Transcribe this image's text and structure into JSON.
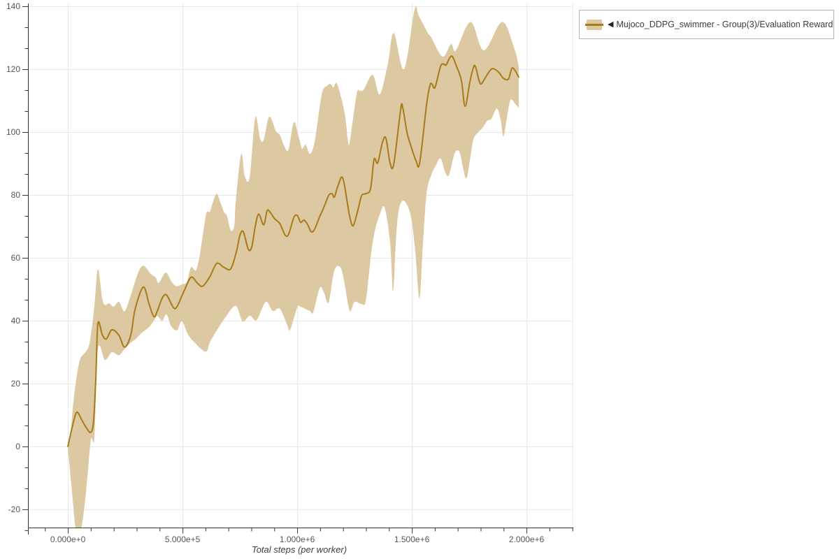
{
  "legend": {
    "arrow": "◀",
    "label": "Mujoco_DDPG_swimmer - Group(3)/Evaluation Reward"
  },
  "colors": {
    "line": "#a87a18",
    "band": "#dcc9a1",
    "grid": "#e7e7e7",
    "axis": "#333333",
    "tick_text": "#555555",
    "axis_title_text": "#3f3f3f",
    "legend_border": "#b5b5b5"
  },
  "chart_data": {
    "type": "line",
    "title": "",
    "xlabel": "Total steps (per worker)",
    "ylabel": "",
    "grid": true,
    "legend_position": "top-right",
    "xlim": [
      -174000,
      2204000
    ],
    "ylim": [
      -25.8,
      140.9
    ],
    "x_ticks": [
      {
        "value": 0,
        "label": "0.000e+0"
      },
      {
        "value": 500000,
        "label": "5.000e+5"
      },
      {
        "value": 1000000,
        "label": "1.000e+6"
      },
      {
        "value": 1500000,
        "label": "1.500e+6"
      },
      {
        "value": 2000000,
        "label": "2.000e+6"
      }
    ],
    "x_minor_step": 100000,
    "y_ticks": [
      {
        "value": -20,
        "label": "-20"
      },
      {
        "value": 0,
        "label": "0"
      },
      {
        "value": 20,
        "label": "20"
      },
      {
        "value": 40,
        "label": "40"
      },
      {
        "value": 60,
        "label": "60"
      },
      {
        "value": 80,
        "label": "80"
      },
      {
        "value": 100,
        "label": "100"
      },
      {
        "value": 120,
        "label": "120"
      },
      {
        "value": 140,
        "label": "140"
      }
    ],
    "series": [
      {
        "name": "Mujoco_DDPG_swimmer - Group(3)/Evaluation Reward",
        "mean": [
          [
            0,
            0
          ],
          [
            25000,
            8
          ],
          [
            40000,
            10.9
          ],
          [
            60000,
            8.5
          ],
          [
            80000,
            6
          ],
          [
            100000,
            4.5
          ],
          [
            112000,
            8
          ],
          [
            122000,
            22
          ],
          [
            131000,
            39.1
          ],
          [
            150000,
            35.5
          ],
          [
            168000,
            34.2
          ],
          [
            192000,
            37.1
          ],
          [
            223000,
            35.3
          ],
          [
            247000,
            31.6
          ],
          [
            274000,
            35.3
          ],
          [
            293000,
            43.6
          ],
          [
            329000,
            50.7
          ],
          [
            354000,
            45.3
          ],
          [
            375000,
            41.3
          ],
          [
            390000,
            43.1
          ],
          [
            411000,
            47.1
          ],
          [
            430000,
            48.2
          ],
          [
            460000,
            44.2
          ],
          [
            476000,
            44.5
          ],
          [
            506000,
            49.3
          ],
          [
            537000,
            53.8
          ],
          [
            564000,
            52
          ],
          [
            588000,
            51
          ],
          [
            619000,
            54
          ],
          [
            649000,
            58.2
          ],
          [
            680000,
            57
          ],
          [
            710000,
            56.5
          ],
          [
            735000,
            62
          ],
          [
            750000,
            67.1
          ],
          [
            765000,
            68.3
          ],
          [
            787000,
            62.7
          ],
          [
            802000,
            63.5
          ],
          [
            817000,
            70
          ],
          [
            832000,
            73.9
          ],
          [
            854000,
            70.5
          ],
          [
            869000,
            75
          ],
          [
            884000,
            74.3
          ],
          [
            902000,
            72.4
          ],
          [
            924000,
            70.9
          ],
          [
            948000,
            67.2
          ],
          [
            963000,
            67.6
          ],
          [
            985000,
            72.8
          ],
          [
            1000000,
            73.5
          ],
          [
            1015000,
            71.3
          ],
          [
            1030000,
            72
          ],
          [
            1046000,
            70.5
          ],
          [
            1061000,
            68.3
          ],
          [
            1076000,
            69.1
          ],
          [
            1098000,
            73.1
          ],
          [
            1116000,
            76
          ],
          [
            1137000,
            79.8
          ],
          [
            1152000,
            80.4
          ],
          [
            1162000,
            79.3
          ],
          [
            1177000,
            82.7
          ],
          [
            1198000,
            85.5
          ],
          [
            1220000,
            76.9
          ],
          [
            1229000,
            73.1
          ],
          [
            1244000,
            70.2
          ],
          [
            1265000,
            75.3
          ],
          [
            1281000,
            79.8
          ],
          [
            1299000,
            80.4
          ],
          [
            1320000,
            82
          ],
          [
            1335000,
            91.3
          ],
          [
            1351000,
            90.2
          ],
          [
            1372000,
            96.8
          ],
          [
            1387000,
            98
          ],
          [
            1405000,
            90.2
          ],
          [
            1421000,
            89.8
          ],
          [
            1451000,
            107.1
          ],
          [
            1460000,
            107.8
          ],
          [
            1479000,
            99.8
          ],
          [
            1494000,
            96
          ],
          [
            1518000,
            90.9
          ],
          [
            1534000,
            90.2
          ],
          [
            1564000,
            108.7
          ],
          [
            1579000,
            114.9
          ],
          [
            1588000,
            115.3
          ],
          [
            1601000,
            114.2
          ],
          [
            1625000,
            120.9
          ],
          [
            1640000,
            121.6
          ],
          [
            1649000,
            121.3
          ],
          [
            1665000,
            123.6
          ],
          [
            1677000,
            124
          ],
          [
            1695000,
            120.9
          ],
          [
            1716000,
            116.4
          ],
          [
            1732000,
            108.2
          ],
          [
            1753000,
            116
          ],
          [
            1768000,
            120.4
          ],
          [
            1777000,
            120.9
          ],
          [
            1793000,
            116.4
          ],
          [
            1802000,
            115.3
          ],
          [
            1817000,
            116.9
          ],
          [
            1838000,
            119.3
          ],
          [
            1853000,
            120.2
          ],
          [
            1878000,
            119.1
          ],
          [
            1899000,
            117.1
          ],
          [
            1921000,
            116.9
          ],
          [
            1939000,
            120.4
          ],
          [
            1966000,
            117.5
          ]
        ],
        "band_hi": [
          [
            0,
            0.5
          ],
          [
            9000,
            2
          ],
          [
            24000,
            14
          ],
          [
            40000,
            23
          ],
          [
            55000,
            28
          ],
          [
            76000,
            30
          ],
          [
            95000,
            33
          ],
          [
            116000,
            45
          ],
          [
            131000,
            56.4
          ],
          [
            150000,
            47
          ],
          [
            162000,
            45
          ],
          [
            180000,
            45.5
          ],
          [
            200000,
            44.5
          ],
          [
            223000,
            46
          ],
          [
            247000,
            43
          ],
          [
            274000,
            48
          ],
          [
            305000,
            55
          ],
          [
            329000,
            57.5
          ],
          [
            360000,
            55
          ],
          [
            384000,
            53.6
          ],
          [
            396000,
            52
          ],
          [
            427000,
            55.3
          ],
          [
            451000,
            52.5
          ],
          [
            473000,
            51
          ],
          [
            500000,
            51.6
          ],
          [
            520000,
            52.5
          ],
          [
            537000,
            57
          ],
          [
            558000,
            56
          ],
          [
            573000,
            60
          ],
          [
            588000,
            67
          ],
          [
            604000,
            74.2
          ],
          [
            619000,
            74.7
          ],
          [
            634000,
            78
          ],
          [
            649000,
            80.4
          ],
          [
            665000,
            77.6
          ],
          [
            680000,
            74.7
          ],
          [
            695000,
            73.1
          ],
          [
            710000,
            68.7
          ],
          [
            726000,
            70.2
          ],
          [
            732000,
            78
          ],
          [
            756000,
            93.1
          ],
          [
            771000,
            86
          ],
          [
            793000,
            85.8
          ],
          [
            817000,
            104.7
          ],
          [
            838000,
            98
          ],
          [
            854000,
            97.6
          ],
          [
            878000,
            104.9
          ],
          [
            908000,
            100.2
          ],
          [
            924000,
            99.1
          ],
          [
            948000,
            94.9
          ],
          [
            963000,
            94.7
          ],
          [
            985000,
            103.1
          ],
          [
            1006000,
            98.7
          ],
          [
            1021000,
            94.7
          ],
          [
            1037000,
            96
          ],
          [
            1055000,
            93.1
          ],
          [
            1076000,
            96.9
          ],
          [
            1107000,
            112
          ],
          [
            1131000,
            114.7
          ],
          [
            1146000,
            115.3
          ],
          [
            1158000,
            114.2
          ],
          [
            1174000,
            115.3
          ],
          [
            1207000,
            106
          ],
          [
            1220000,
            98
          ],
          [
            1229000,
            96.9
          ],
          [
            1259000,
            112
          ],
          [
            1274000,
            113.1
          ],
          [
            1290000,
            113.5
          ],
          [
            1329000,
            118.2
          ],
          [
            1360000,
            112
          ],
          [
            1396000,
            122
          ],
          [
            1421000,
            131.5
          ],
          [
            1466000,
            120
          ],
          [
            1512000,
            139
          ],
          [
            1530000,
            137
          ],
          [
            1570000,
            131.5
          ],
          [
            1585000,
            130
          ],
          [
            1634000,
            124
          ],
          [
            1671000,
            128
          ],
          [
            1692000,
            126
          ],
          [
            1756000,
            135
          ],
          [
            1814000,
            126
          ],
          [
            1893000,
            135
          ],
          [
            1945000,
            127
          ],
          [
            1966000,
            121
          ]
        ],
        "band_lo": [
          [
            0,
            -0.5
          ],
          [
            15000,
            -12
          ],
          [
            33000,
            -26
          ],
          [
            45000,
            -28
          ],
          [
            61000,
            -25
          ],
          [
            80000,
            -14
          ],
          [
            100000,
            2
          ],
          [
            116000,
            3
          ],
          [
            131000,
            30.9
          ],
          [
            162000,
            27.5
          ],
          [
            192000,
            30
          ],
          [
            223000,
            29
          ],
          [
            247000,
            31
          ],
          [
            274000,
            33
          ],
          [
            293000,
            34
          ],
          [
            320000,
            36
          ],
          [
            354000,
            38
          ],
          [
            375000,
            40
          ],
          [
            390000,
            41.5
          ],
          [
            411000,
            40
          ],
          [
            430000,
            42
          ],
          [
            451000,
            38.2
          ],
          [
            476000,
            37
          ],
          [
            497000,
            39.8
          ],
          [
            521000,
            36
          ],
          [
            540000,
            34
          ],
          [
            558000,
            32.7
          ],
          [
            573000,
            31.5
          ],
          [
            604000,
            30.2
          ],
          [
            619000,
            33.1
          ],
          [
            650000,
            37
          ],
          [
            689000,
            41.3
          ],
          [
            732000,
            44.7
          ],
          [
            762000,
            39.8
          ],
          [
            793000,
            41.6
          ],
          [
            823000,
            40.2
          ],
          [
            863000,
            46
          ],
          [
            893000,
            43.1
          ],
          [
            924000,
            43.8
          ],
          [
            954000,
            39.1
          ],
          [
            969000,
            37.1
          ],
          [
            1000000,
            44.2
          ],
          [
            1015000,
            44.4
          ],
          [
            1055000,
            43.1
          ],
          [
            1070000,
            42.7
          ],
          [
            1098000,
            50.4
          ],
          [
            1116000,
            49.1
          ],
          [
            1137000,
            45.8
          ],
          [
            1162000,
            56
          ],
          [
            1189000,
            56.9
          ],
          [
            1207000,
            51.6
          ],
          [
            1229000,
            43.1
          ],
          [
            1250000,
            46
          ],
          [
            1281000,
            45.3
          ],
          [
            1299000,
            46.4
          ],
          [
            1320000,
            59.8
          ],
          [
            1329000,
            64.7
          ],
          [
            1341000,
            69.3
          ],
          [
            1360000,
            73.8
          ],
          [
            1381000,
            76
          ],
          [
            1405000,
            65
          ],
          [
            1418000,
            49.3
          ],
          [
            1430000,
            65
          ],
          [
            1442000,
            74.7
          ],
          [
            1463000,
            78.2
          ],
          [
            1494000,
            73.8
          ],
          [
            1515000,
            62
          ],
          [
            1533000,
            47.1
          ],
          [
            1548000,
            64
          ],
          [
            1564000,
            80.4
          ],
          [
            1585000,
            86.4
          ],
          [
            1604000,
            89.3
          ],
          [
            1625000,
            91.6
          ],
          [
            1646000,
            87.1
          ],
          [
            1662000,
            86.4
          ],
          [
            1686000,
            93.1
          ],
          [
            1707000,
            93.8
          ],
          [
            1722000,
            89
          ],
          [
            1738000,
            85.3
          ],
          [
            1755000,
            92
          ],
          [
            1768000,
            97.6
          ],
          [
            1787000,
            99.8
          ],
          [
            1808000,
            101.3
          ],
          [
            1829000,
            103.6
          ],
          [
            1847000,
            104.2
          ],
          [
            1870000,
            107.5
          ],
          [
            1887000,
            104
          ],
          [
            1899000,
            98.7
          ],
          [
            1913000,
            104
          ],
          [
            1930000,
            110.2
          ],
          [
            1950000,
            109
          ],
          [
            1966000,
            107.6
          ]
        ]
      }
    ]
  }
}
